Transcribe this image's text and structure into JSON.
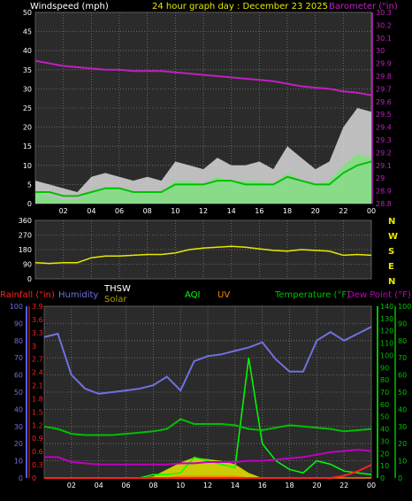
{
  "header": {
    "wind_label": "Windspeed (mph)",
    "graph_title": "24 hour graph day : December 23 2025",
    "baro_label": "Barometer (\"in)"
  },
  "time_ticks": [
    "02",
    "04",
    "06",
    "08",
    "10",
    "12",
    "14",
    "16",
    "18",
    "20",
    "22",
    "00"
  ],
  "dir_letters": [
    "N",
    "W",
    "S",
    "E",
    "N"
  ],
  "legend": {
    "rainfall": "Rainfall (\"in)",
    "humidity": "Humidity",
    "thsw": "THSW",
    "solar": "Solar",
    "aqi": "AQI",
    "uv": "UV",
    "temperature": "Temperature (°F)",
    "dewpoint": "Dew Point (°F)"
  },
  "colors": {
    "wind": "#ffffff",
    "gust": "#ffffff",
    "avg_wind": "#00c000",
    "barometer": "#c020c0",
    "direction": "#e8e800",
    "humidity": "#7070e0",
    "temperature": "#00c000",
    "dewpoint": "#c000c0",
    "rainfall": "#ff2020",
    "solar": "#e8e800",
    "aqi": "#00ff00",
    "uv": "#ff8000"
  },
  "chart_data": [
    {
      "type": "line",
      "name": "wind-barometer",
      "title": "24 hour graph day : December 23 2025",
      "x_ticks": [
        "02",
        "04",
        "06",
        "08",
        "10",
        "12",
        "14",
        "16",
        "18",
        "20",
        "22",
        "00"
      ],
      "y_left_label": "Windspeed (mph)",
      "y_left_ticks": [
        0,
        5,
        10,
        15,
        20,
        25,
        30,
        35,
        40,
        45,
        50
      ],
      "y_left_lim": [
        0,
        50
      ],
      "y_right_label": "Barometer (\"in)",
      "y_right_ticks": [
        "28.8",
        "28.9",
        "29",
        "29.1",
        "29.2",
        "29.3",
        "29.4",
        "29.5",
        "29.6",
        "29.7",
        "29.8",
        "29.9",
        "30",
        "30.1",
        "30.2",
        "30.3"
      ],
      "y_right_lim": [
        28.8,
        30.3
      ],
      "x_hours": [
        0,
        1,
        2,
        3,
        4,
        5,
        6,
        7,
        8,
        9,
        10,
        11,
        12,
        13,
        14,
        15,
        16,
        17,
        18,
        19,
        20,
        21,
        22,
        23,
        24
      ],
      "series": [
        {
          "name": "Barometer",
          "axis": "right",
          "values": [
            29.92,
            29.9,
            29.88,
            29.87,
            29.86,
            29.85,
            29.85,
            29.84,
            29.84,
            29.84,
            29.83,
            29.82,
            29.81,
            29.8,
            29.79,
            29.78,
            29.77,
            29.76,
            29.74,
            29.72,
            29.71,
            29.7,
            29.68,
            29.67,
            29.65
          ]
        },
        {
          "name": "Wind Gust",
          "axis": "left",
          "values": [
            6,
            5,
            4,
            3,
            7,
            8,
            7,
            6,
            7,
            6,
            11,
            10,
            9,
            12,
            10,
            10,
            11,
            9,
            15,
            12,
            9,
            11,
            20,
            25,
            24
          ]
        },
        {
          "name": "Wind Speed",
          "axis": "left",
          "values": [
            3,
            2,
            1,
            1,
            3,
            4,
            4,
            3,
            3,
            3,
            6,
            6,
            5,
            7,
            6,
            6,
            6,
            5,
            8,
            6,
            5,
            6,
            10,
            13,
            12
          ]
        },
        {
          "name": "Average Wind",
          "axis": "left",
          "values": [
            3,
            3,
            2,
            2,
            3,
            4,
            4,
            3,
            3,
            3,
            5,
            5,
            5,
            6,
            6,
            5,
            5,
            5,
            7,
            6,
            5,
            5,
            8,
            10,
            11
          ]
        }
      ]
    },
    {
      "type": "line",
      "name": "wind-direction",
      "y_ticks": [
        0,
        90,
        180,
        270,
        360
      ],
      "y_lim": [
        0,
        360
      ],
      "x_ticks": [
        "02",
        "04",
        "06",
        "08",
        "10",
        "12",
        "14",
        "16",
        "18",
        "20",
        "22",
        "00"
      ],
      "x_hours": [
        0,
        1,
        2,
        3,
        4,
        5,
        6,
        7,
        8,
        9,
        10,
        11,
        12,
        13,
        14,
        15,
        16,
        17,
        18,
        19,
        20,
        21,
        22,
        23,
        24
      ],
      "series": [
        {
          "name": "Wind Direction",
          "values": [
            100,
            95,
            100,
            100,
            130,
            140,
            140,
            145,
            150,
            150,
            160,
            180,
            190,
            195,
            200,
            195,
            185,
            175,
            170,
            180,
            175,
            170,
            145,
            150,
            145
          ]
        }
      ]
    },
    {
      "type": "line",
      "name": "climate",
      "x_ticks": [
        "02",
        "04",
        "06",
        "08",
        "10",
        "12",
        "14",
        "16",
        "18",
        "20",
        "22",
        "00"
      ],
      "y_hum_ticks": [
        0,
        10,
        20,
        30,
        40,
        50,
        60,
        70,
        80,
        90,
        100
      ],
      "y_hum_lim": [
        0,
        100
      ],
      "y_rain_ticks": [
        "0",
        "0.3",
        "0.6",
        "0.9",
        "1.2",
        "1.5",
        "1.8",
        "2.1",
        "2.4",
        "2.7",
        "3",
        "3.3",
        "3.6",
        "3.9"
      ],
      "y_rain_lim": [
        0,
        3.9
      ],
      "y_temp_ticks": [
        0,
        10,
        20,
        30,
        40,
        50,
        60,
        70,
        80,
        90,
        100,
        110,
        120,
        130,
        140
      ],
      "y_temp_lim": [
        0,
        140
      ],
      "y_aqi_ticks": [
        0,
        10,
        20,
        30,
        40,
        50,
        60,
        70,
        80,
        90,
        100
      ],
      "y_aqi_lim": [
        0,
        100
      ],
      "x_hours": [
        0,
        1,
        2,
        3,
        4,
        5,
        6,
        7,
        8,
        9,
        10,
        11,
        12,
        13,
        14,
        15,
        16,
        17,
        18,
        19,
        20,
        21,
        22,
        23,
        24
      ],
      "series": [
        {
          "name": "Humidity",
          "axis": "humidity",
          "values": [
            82,
            84,
            60,
            52,
            49,
            50,
            51,
            52,
            54,
            59,
            51,
            68,
            71,
            72,
            74,
            76,
            79,
            69,
            62,
            62,
            80,
            85,
            80,
            84,
            88
          ]
        },
        {
          "name": "Temperature",
          "axis": "temperature",
          "values": [
            42,
            40,
            36,
            35,
            35,
            35,
            36,
            37,
            38,
            40,
            48,
            44,
            44,
            44,
            43,
            40,
            39,
            41,
            43,
            42,
            41,
            40,
            38,
            39,
            40
          ]
        },
        {
          "name": "Dew Point",
          "axis": "temperature",
          "values": [
            17,
            17,
            13,
            12,
            11,
            11,
            11,
            11,
            11,
            11,
            12,
            12,
            13,
            13,
            13,
            14,
            14,
            15,
            16,
            17,
            19,
            21,
            22,
            23,
            22
          ]
        },
        {
          "name": "Solar",
          "axis": "humidity",
          "values": [
            0,
            0,
            0,
            0,
            0,
            0,
            0,
            0,
            1,
            5,
            9,
            12,
            11,
            10,
            8,
            3,
            0,
            0,
            0,
            0,
            0,
            0,
            0,
            0,
            0
          ]
        },
        {
          "name": "AQI",
          "axis": "aqi",
          "values": [
            0,
            0,
            0,
            0,
            0,
            0,
            0,
            0,
            2,
            2,
            3,
            12,
            10,
            8,
            6,
            70,
            20,
            10,
            5,
            3,
            10,
            8,
            4,
            3,
            2
          ]
        },
        {
          "name": "UV",
          "axis": "humidity",
          "values": [
            0,
            0,
            0,
            0,
            0,
            0,
            0,
            0,
            0,
            0,
            1,
            1,
            1,
            1,
            1,
            0,
            0,
            0,
            0,
            0,
            0,
            0,
            0,
            0,
            0
          ]
        },
        {
          "name": "Rainfall",
          "axis": "rain",
          "values": [
            0,
            0,
            0,
            0,
            0,
            0,
            0,
            0,
            0,
            0,
            0,
            0,
            0,
            0,
            0,
            0,
            0,
            0,
            0,
            0,
            0,
            0,
            0.05,
            0.15,
            0.3
          ]
        }
      ]
    }
  ]
}
